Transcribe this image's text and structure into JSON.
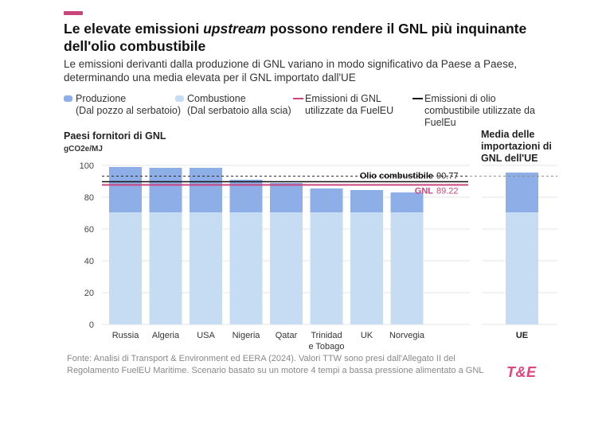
{
  "header": {
    "title_part1": "Le elevate emissioni ",
    "title_em": "upstream",
    "title_part2": " possono rendere il GNL più inquinante dell'olio combustibile",
    "subtitle": "Le emissioni derivanti dalla produzione di GNL variano in modo significativo da Paese a Paese, determinando una media elevata per il GNL importato dall'UE"
  },
  "legend": {
    "production_line1": "Produzione",
    "production_line2": "(Dal pozzo al serbatoio)",
    "combustion_line1": "Combustione",
    "combustion_line2": "(Dal serbatoio alla scia)",
    "lng_line1": "Emissioni di GNL",
    "lng_line2": "utilizzate da FuelEU",
    "oil_line1": "Emissioni di olio",
    "oil_line2": "combustibile utilizzate da",
    "oil_line3": "FuelEu"
  },
  "panels": {
    "left_title": "Paesi fornitori di GNL",
    "right_title_1": "Media delle",
    "right_title_2": "importazioni di",
    "right_title_3": "GNL dell'UE",
    "unit": "gCO2e/MJ"
  },
  "footer": {
    "source": "Fonte: Analisi di Transport & Environment ed EERA (2024). Valori TTW sono presi dall'Allegato II del Regolamento FuelEU Maritime. Scenario basato su un motore 4 tempi a bassa pressione alimentato a GNL",
    "logo": "T&E"
  },
  "colors": {
    "production": "#8eaee8",
    "combustion": "#c5dcf2",
    "lng_line": "#c8467d",
    "oil_line": "#111111",
    "accent": "#c8467d"
  },
  "chart_data": {
    "type": "bar",
    "stacked": true,
    "categories": [
      "Russia",
      "Algeria",
      "USA",
      "Nigeria",
      "Qatar",
      "Trinidad e Tobago",
      "UK",
      "Norvegia"
    ],
    "series": [
      {
        "name": "Combustione",
        "values": [
          70.5,
          70.5,
          70.5,
          70.5,
          70.5,
          70.5,
          70.5,
          70.5
        ]
      },
      {
        "name": "Produzione",
        "values": [
          28.5,
          28,
          28,
          20.5,
          18.5,
          15,
          14,
          12.5
        ]
      }
    ],
    "eu_average": {
      "category": "UE",
      "combustion": 70.5,
      "production": 25
    },
    "reference_lines": [
      {
        "label": "Olio combustibile",
        "value": 90.77,
        "value_label": "90.77"
      },
      {
        "label": "GNL",
        "value": 89.22,
        "value_label": "89.22"
      }
    ],
    "ylim": [
      0,
      100
    ],
    "yticks": [
      "0",
      "20",
      "40",
      "60",
      "80",
      "100"
    ],
    "grid": true
  }
}
